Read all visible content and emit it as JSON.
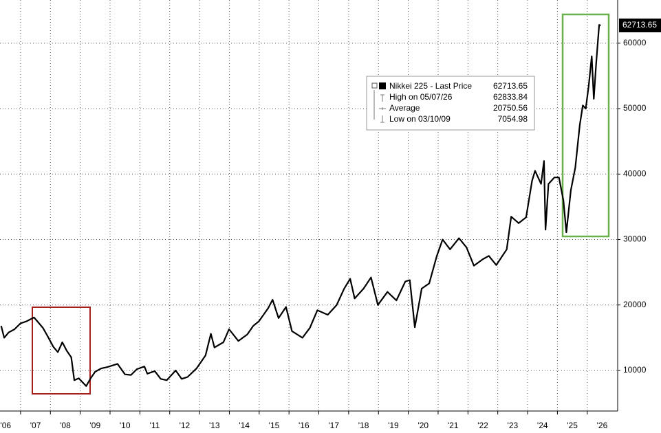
{
  "chart_data": {
    "type": "line",
    "series": [
      {
        "name": "Nikkei 225 - Last Price",
        "color": "#000000",
        "x": [
          2006.35,
          2006.45,
          2006.6,
          2006.8,
          2007.0,
          2007.2,
          2007.45,
          2007.6,
          2007.75,
          2007.9,
          2008.1,
          2008.25,
          2008.4,
          2008.55,
          2008.7,
          2008.8,
          2008.95,
          2009.2,
          2009.35,
          2009.5,
          2009.7,
          2009.9,
          2010.25,
          2010.5,
          2010.7,
          2010.9,
          2011.15,
          2011.25,
          2011.5,
          2011.7,
          2011.9,
          2012.2,
          2012.4,
          2012.6,
          2012.9,
          2013.2,
          2013.38,
          2013.5,
          2013.8,
          2013.99,
          2014.3,
          2014.6,
          2014.8,
          2014.99,
          2015.3,
          2015.45,
          2015.65,
          2015.9,
          2016.1,
          2016.45,
          2016.7,
          2016.95,
          2017.3,
          2017.6,
          2017.85,
          2018.05,
          2018.2,
          2018.5,
          2018.75,
          2018.98,
          2019.3,
          2019.6,
          2019.9,
          2020.05,
          2020.22,
          2020.45,
          2020.7,
          2020.95,
          2021.15,
          2021.4,
          2021.7,
          2021.95,
          2022.2,
          2022.5,
          2022.7,
          2022.95,
          2023.3,
          2023.45,
          2023.7,
          2023.95,
          2024.15,
          2024.25,
          2024.45,
          2024.55,
          2024.6,
          2024.7,
          2024.9,
          2025.05,
          2025.2,
          2025.3,
          2025.45,
          2025.6,
          2025.75,
          2025.85,
          2025.95,
          2026.05,
          2026.15,
          2026.22,
          2026.3,
          2026.4,
          2026.45
        ],
        "values": [
          16800,
          15000,
          15800,
          16300,
          17200,
          17500,
          18100,
          17300,
          16500,
          15300,
          13600,
          12800,
          14300,
          13000,
          12000,
          8500,
          8800,
          7600,
          8800,
          9800,
          10300,
          10500,
          11000,
          9400,
          9300,
          10200,
          10600,
          9500,
          9900,
          8700,
          8500,
          10000,
          8700,
          9000,
          10300,
          12300,
          15600,
          13500,
          14300,
          16300,
          14500,
          15500,
          16800,
          17500,
          19500,
          20800,
          18000,
          19700,
          16000,
          15000,
          16500,
          19200,
          18500,
          20000,
          22500,
          24000,
          21000,
          22500,
          24200,
          20000,
          22000,
          20700,
          23600,
          23800,
          16600,
          22500,
          23300,
          27400,
          30000,
          28500,
          30200,
          28800,
          26000,
          27000,
          27500,
          26100,
          28500,
          33500,
          32500,
          33400,
          39000,
          40500,
          38500,
          42000,
          31500,
          38500,
          39500,
          39500,
          36000,
          31100,
          37500,
          41000,
          47500,
          50500,
          50000,
          53500,
          58000,
          51500,
          57000,
          62800,
          62713.65
        ]
      }
    ],
    "legend_stats": [
      {
        "label": "High on 05/07/26",
        "value": 62833.84
      },
      {
        "label": "Average",
        "value": 20750.56
      },
      {
        "label": "Low on 03/10/09",
        "value": 7054.98
      }
    ],
    "xlim": [
      2006.31,
      2027.02
    ],
    "xticks": [
      {
        "value": 2006,
        "label": "'06"
      },
      {
        "value": 2007,
        "label": "'07"
      },
      {
        "value": 2008,
        "label": "'08"
      },
      {
        "value": 2009,
        "label": "'09"
      },
      {
        "value": 2010,
        "label": "'10"
      },
      {
        "value": 2011,
        "label": "'11"
      },
      {
        "value": 2012,
        "label": "'12"
      },
      {
        "value": 2013,
        "label": "'13"
      },
      {
        "value": 2014,
        "label": "'14"
      },
      {
        "value": 2015,
        "label": "'15"
      },
      {
        "value": 2016,
        "label": "'16"
      },
      {
        "value": 2017,
        "label": "'17"
      },
      {
        "value": 2018,
        "label": "'18"
      },
      {
        "value": 2019,
        "label": "'19"
      },
      {
        "value": 2020,
        "label": "'20"
      },
      {
        "value": 2021,
        "label": "'21"
      },
      {
        "value": 2022,
        "label": "'22"
      },
      {
        "value": 2023,
        "label": "'23"
      },
      {
        "value": 2024,
        "label": "'24"
      },
      {
        "value": 2025,
        "label": "'25"
      },
      {
        "value": 2026,
        "label": "'26"
      }
    ],
    "ylim": [
      3800,
      66600
    ],
    "yticks": [
      10000,
      20000,
      30000,
      40000,
      50000,
      60000
    ],
    "grid": true
  }
}
